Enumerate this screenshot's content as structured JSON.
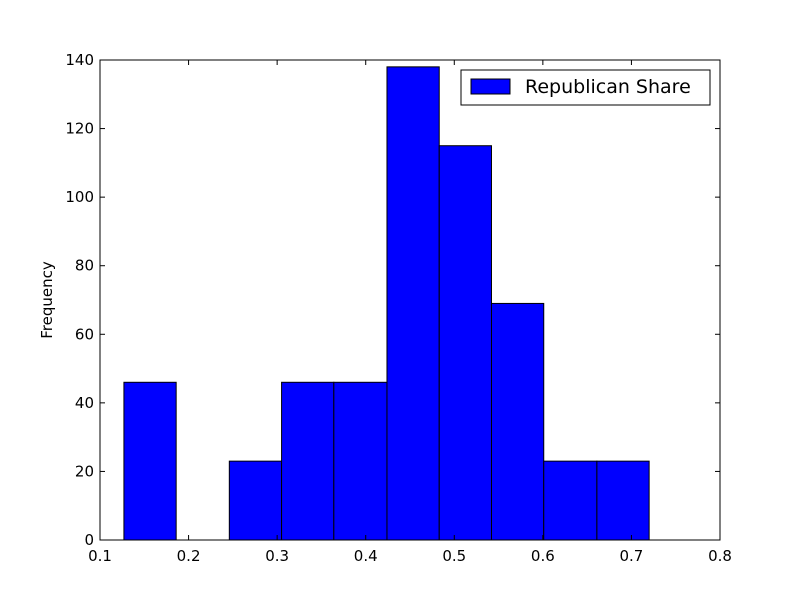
{
  "chart_data": {
    "type": "bar",
    "title": "",
    "xlabel": "",
    "ylabel": "Frequency",
    "xlim": [
      0.1,
      0.8
    ],
    "ylim": [
      0,
      140
    ],
    "xticks": [
      "0.1",
      "0.2",
      "0.3",
      "0.4",
      "0.5",
      "0.6",
      "0.7",
      "0.8"
    ],
    "yticks": [
      "0",
      "20",
      "40",
      "60",
      "80",
      "100",
      "120",
      "140"
    ],
    "grid": false,
    "legend_position": "top-right",
    "bar_color": "#0000ff",
    "series": [
      {
        "name": "Republican Share",
        "bins": [
          {
            "x0": 0.127,
            "x1": 0.186,
            "count": 46
          },
          {
            "x0": 0.186,
            "x1": 0.246,
            "count": 0
          },
          {
            "x0": 0.246,
            "x1": 0.305,
            "count": 23
          },
          {
            "x0": 0.305,
            "x1": 0.364,
            "count": 46
          },
          {
            "x0": 0.364,
            "x1": 0.424,
            "count": 46
          },
          {
            "x0": 0.424,
            "x1": 0.483,
            "count": 138
          },
          {
            "x0": 0.483,
            "x1": 0.542,
            "count": 115
          },
          {
            "x0": 0.542,
            "x1": 0.601,
            "count": 69
          },
          {
            "x0": 0.601,
            "x1": 0.661,
            "count": 23
          },
          {
            "x0": 0.661,
            "x1": 0.72,
            "count": 23
          }
        ]
      }
    ]
  }
}
